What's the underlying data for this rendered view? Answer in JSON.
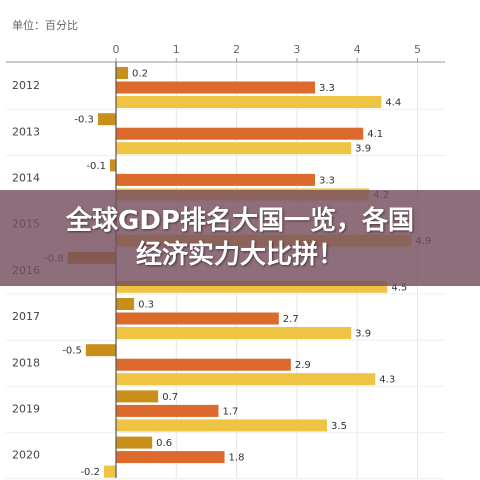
{
  "unit_label": "单位：百分比",
  "banner": {
    "line1": "全球GDP排名大国一览，各国",
    "line2": "经济实力大比拼！"
  },
  "colors": {
    "series1": "#C8901A",
    "series2": "#DC6A2C",
    "series3": "#EFC443",
    "axis": "#555555",
    "grid": "#e6e6e6",
    "text": "#333333"
  },
  "chart_data": {
    "type": "bar",
    "orientation": "horizontal",
    "categories": [
      "2012",
      "2013",
      "2014",
      "2015",
      "2016",
      "2017",
      "2018",
      "2019",
      "2020"
    ],
    "series": [
      {
        "values": [
          0.2,
          -0.3,
          -0.1,
          null,
          -0.8,
          0.3,
          -0.5,
          0.7,
          0.6
        ]
      },
      {
        "values": [
          3.3,
          4.1,
          3.3,
          null,
          null,
          2.7,
          2.9,
          1.7,
          1.8
        ]
      },
      {
        "values": [
          4.4,
          3.9,
          4.2,
          4.9,
          4.5,
          3.9,
          4.3,
          3.5,
          -0.2
        ]
      }
    ],
    "xticks": [
      0,
      1,
      2,
      3,
      4,
      5
    ],
    "xlim": [
      -1.7,
      5.6
    ],
    "grid": true
  }
}
